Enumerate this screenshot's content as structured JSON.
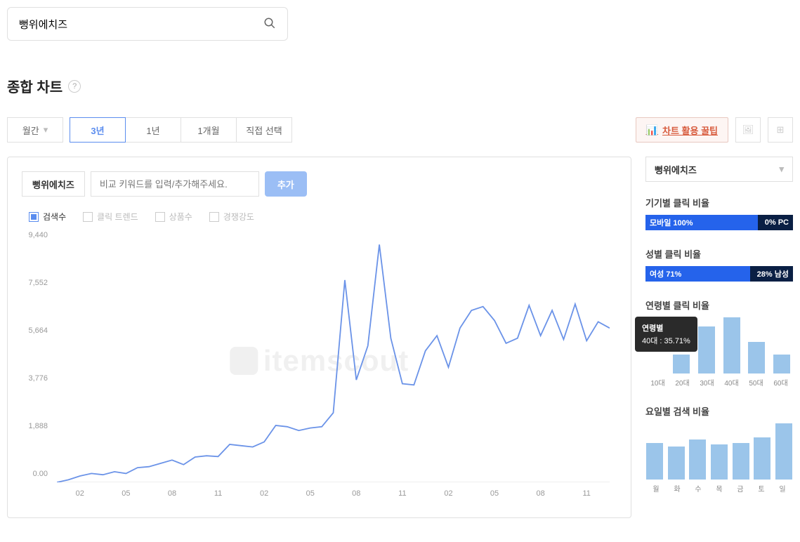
{
  "search": {
    "value": "뻥위에치즈"
  },
  "section_title": "종합 차트",
  "period": {
    "select_label": "월간",
    "tabs": [
      "3년",
      "1년",
      "1개월",
      "직접 선택"
    ],
    "active_index": 0
  },
  "tip_button": "차트 활용 꿀팁",
  "chart_panel": {
    "keyword_chip": "뻥위에치즈",
    "compare_placeholder": "비교 키워드를 입력/추가해주세요.",
    "add_button": "추가",
    "legend": [
      {
        "label": "검색수",
        "checked": true
      },
      {
        "label": "클릭 트렌드",
        "checked": false
      },
      {
        "label": "상품수",
        "checked": false
      },
      {
        "label": "경쟁강도",
        "checked": false
      }
    ],
    "watermark": "itemscout",
    "line_chart": {
      "type": "line",
      "color": "#6b93e8",
      "line_width": 1.8,
      "ylim": [
        0,
        9440
      ],
      "yticks": [
        0.0,
        1888,
        3776,
        5664,
        7552,
        9440
      ],
      "ytick_labels": [
        "0.00",
        "1,888",
        "3,776",
        "5,664",
        "7,552",
        "9,440"
      ],
      "x_labels": [
        "02",
        "05",
        "08",
        "11",
        "02",
        "05",
        "08",
        "11",
        "02",
        "05",
        "08",
        "11"
      ],
      "values": [
        0,
        100,
        250,
        350,
        300,
        420,
        350,
        580,
        620,
        750,
        880,
        700,
        1000,
        1050,
        1020,
        1500,
        1450,
        1400,
        1600,
        2250,
        2200,
        2050,
        2150,
        2200,
        2750,
        8000,
        4050,
        5400,
        9400,
        5700,
        3900,
        3850,
        5200,
        5800,
        4550,
        6100,
        6800,
        6950,
        6400,
        5500,
        5700,
        7000,
        5800,
        6800,
        5650,
        7050,
        5600,
        6350,
        6100
      ]
    }
  },
  "side": {
    "select_value": "뻥위에치즈",
    "device_ratio": {
      "title": "기기별 클릭 비율",
      "left_label": "모바일 100%",
      "left_pct": 100,
      "right_label": "0% PC",
      "left_color": "#2563eb",
      "right_color": "#0a1f44"
    },
    "gender_ratio": {
      "title": "성별 클릭 비율",
      "left_label": "여성 71%",
      "left_pct": 71,
      "right_label": "28% 남성",
      "left_color": "#2563eb",
      "right_color": "#0a1f44"
    },
    "age_chart": {
      "title": "연령별 클릭 비율",
      "categories": [
        "10대",
        "20대",
        "30대",
        "40대",
        "50대",
        "60대"
      ],
      "values": [
        0,
        12,
        30,
        35.71,
        20,
        12
      ],
      "bar_color": "#9bc5ea",
      "tooltip": {
        "title": "연령별",
        "value": "40대 : 35.71%"
      }
    },
    "day_chart": {
      "title": "요일별 검색 비율",
      "categories": [
        "월",
        "화",
        "수",
        "목",
        "금",
        "토",
        "일"
      ],
      "values": [
        60,
        55,
        66,
        58,
        60,
        70,
        93
      ],
      "bar_color": "#9bc5ea"
    }
  }
}
